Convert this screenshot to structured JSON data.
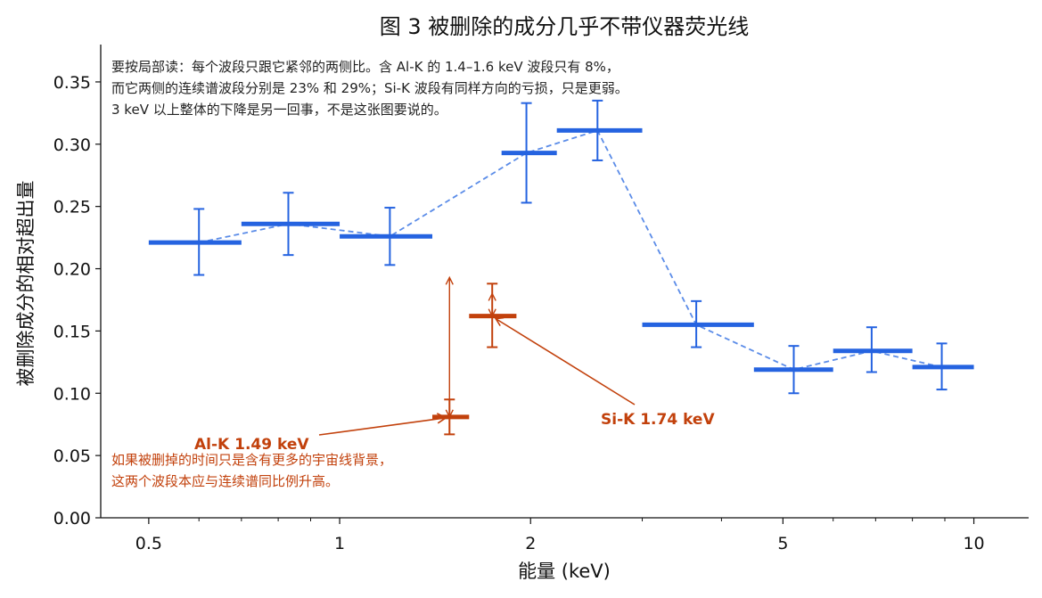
{
  "colors": {
    "series": "#2563e0",
    "series_dash": "#5b8ce8",
    "highlight": "#c2410c",
    "axis": "#111111"
  },
  "chart_data": {
    "type": "scatter",
    "title": "图 3  被删除的成分几乎不带仪器荧光线",
    "xlabel": "能量 (keV)",
    "ylabel": "被删除成分的相对超出量",
    "xscale": "log",
    "xlim": [
      0.42,
      12.2
    ],
    "ylim": [
      0.0,
      0.38
    ],
    "xticks": [
      {
        "value": 0.5,
        "label": "0.5"
      },
      {
        "value": 1,
        "label": "1"
      },
      {
        "value": 2,
        "label": "2"
      },
      {
        "value": 5,
        "label": "5"
      },
      {
        "value": 10,
        "label": "10"
      }
    ],
    "yticks": [
      {
        "value": 0.0,
        "label": "0.00"
      },
      {
        "value": 0.05,
        "label": "0.05"
      },
      {
        "value": 0.1,
        "label": "0.10"
      },
      {
        "value": 0.15,
        "label": "0.15"
      },
      {
        "value": 0.2,
        "label": "0.20"
      },
      {
        "value": 0.25,
        "label": "0.25"
      },
      {
        "value": 0.3,
        "label": "0.30"
      },
      {
        "value": 0.35,
        "label": "0.35"
      }
    ],
    "grid": false,
    "continuum": [
      {
        "x_lo": 0.5,
        "x_hi": 0.7,
        "x_c": 0.6,
        "y": 0.221,
        "err_lo": 0.195,
        "err_hi": 0.248
      },
      {
        "x_lo": 0.7,
        "x_hi": 1.0,
        "x_c": 0.83,
        "y": 0.236,
        "err_lo": 0.211,
        "err_hi": 0.261
      },
      {
        "x_lo": 1.0,
        "x_hi": 1.4,
        "x_c": 1.2,
        "y": 0.226,
        "err_lo": 0.203,
        "err_hi": 0.249
      },
      {
        "x_lo": 1.8,
        "x_hi": 2.2,
        "x_c": 1.97,
        "y": 0.293,
        "err_lo": 0.253,
        "err_hi": 0.333
      },
      {
        "x_lo": 2.2,
        "x_hi": 3.0,
        "x_c": 2.55,
        "y": 0.311,
        "err_lo": 0.287,
        "err_hi": 0.335
      },
      {
        "x_lo": 3.0,
        "x_hi": 4.5,
        "x_c": 3.65,
        "y": 0.155,
        "err_lo": 0.137,
        "err_hi": 0.174
      },
      {
        "x_lo": 4.5,
        "x_hi": 6.0,
        "x_c": 5.2,
        "y": 0.119,
        "err_lo": 0.1,
        "err_hi": 0.138
      },
      {
        "x_lo": 6.0,
        "x_hi": 8.0,
        "x_c": 6.9,
        "y": 0.134,
        "err_lo": 0.117,
        "err_hi": 0.153
      },
      {
        "x_lo": 8.0,
        "x_hi": 10.0,
        "x_c": 8.9,
        "y": 0.121,
        "err_lo": 0.103,
        "err_hi": 0.14
      }
    ],
    "line_bands": [
      {
        "name": "Al-K 1.49 keV",
        "x_lo": 1.4,
        "x_hi": 1.6,
        "x_c": 1.49,
        "y": 0.081,
        "err_lo": 0.067,
        "err_hi": 0.095
      },
      {
        "name": "Si-K 1.74 keV",
        "x_lo": 1.6,
        "x_hi": 1.9,
        "x_c": 1.74,
        "y": 0.162,
        "err_lo": 0.137,
        "err_hi": 0.188
      }
    ],
    "gap_arrows": [
      {
        "x": 1.49,
        "y_from": 0.081,
        "y_to": 0.193
      },
      {
        "x": 1.74,
        "y_from": 0.162,
        "y_to": 0.18
      }
    ],
    "annotations": {
      "note_top": [
        "要按局部读：每个波段只跟它紧邻的两侧比。含 Al-K 的 1.4–1.6 keV 波段只有 8%，",
        "而它两侧的连续谱波段分别是 23% 和 29%；Si-K 波段有同样方向的亏损，只是更弱。",
        "3 keV 以上整体的下降是另一回事，不是这张图要说的。"
      ],
      "note_bottom": [
        "如果被删掉的时间只是含有更多的宇宙线背景，",
        "这两个波段本应与连续谱同比例升高。"
      ],
      "al_label": "Al-K 1.49 keV",
      "si_label": "Si-K 1.74 keV"
    }
  }
}
